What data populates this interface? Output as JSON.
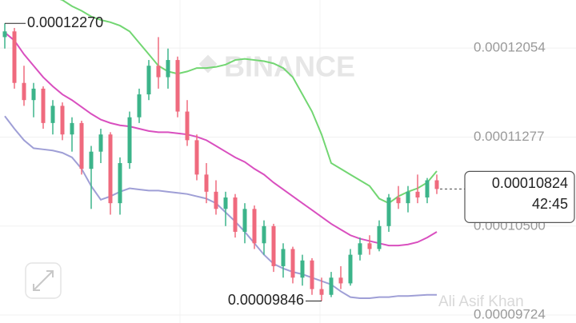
{
  "chart_data": {
    "type": "candlestick",
    "ylim": [
      9.654e-05,
      0.00012474
    ],
    "yticks": [
      0.00012054,
      0.00011277,
      {
        "value": 0.000105,
        "label": "0.00010500"
      },
      9.724e-05
    ],
    "grid": true,
    "up_color": "#3cb48a",
    "down_color": "#ef6a7e",
    "open": [
      0.0001215,
      0.000122,
      0.0001175,
      0.000116,
      0.000117,
      0.000114,
      0.0001155,
      0.000113,
      0.000114,
      0.00011,
      0.0001115,
      0.000113,
      0.000107,
      0.0001105,
      0.0001145,
      0.0001165,
      0.000119,
      0.000118,
      0.0001195,
      0.000115,
      0.0001125,
      0.0001095,
      0.000108,
      0.0001065,
      0.0001075,
      0.0001045,
      0.0001065,
      0.0001035,
      0.000105,
      0.0001015,
      0.000103,
      0.0001005,
      0.000102,
      9.95e-05,
      9.9e-05,
      0.0001005,
      0.0001,
      0.0001025,
      0.0001035,
      0.000103,
      0.000105,
      0.0001075,
      0.000107,
      0.000108,
      0.0001075,
      0.000109
    ],
    "high": [
      0.0001227,
      0.0001223,
      0.000119,
      0.0001175,
      0.0001172,
      0.000116,
      0.0001158,
      0.0001145,
      0.0001142,
      0.000112,
      0.0001135,
      0.0001132,
      0.000111,
      0.000115,
      0.000117,
      0.0001195,
      0.0001215,
      0.0001205,
      0.0001198,
      0.000116,
      0.000113,
      0.0001105,
      0.000109,
      0.000108,
      0.0001078,
      0.000107,
      0.0001068,
      0.0001055,
      0.0001052,
      0.0001035,
      0.0001032,
      0.0001025,
      0.0001022,
      0.0001005,
      0.000101,
      0.0001015,
      0.000103,
      0.000104,
      0.0001042,
      0.0001055,
      0.0001078,
      0.0001085,
      0.0001085,
      0.0001095,
      0.0001092,
      0.0001095
    ],
    "low": [
      0.0001205,
      0.000117,
      0.0001155,
      0.0001145,
      0.0001135,
      0.000113,
      0.0001125,
      0.0001115,
      0.0001095,
      0.0001065,
      0.0001105,
      0.000106,
      0.000106,
      0.00011,
      0.000114,
      0.000116,
      0.000117,
      0.000117,
      0.0001145,
      0.000112,
      0.000109,
      0.000107,
      0.000106,
      0.000105,
      0.000104,
      0.0001035,
      0.000103,
      0.0001025,
      0.000101,
      0.0001005,
      0.0001,
      9.98e-05,
      9.9e-05,
      9.846e-05,
      9.88e-05,
      9.95e-05,
      9.98e-05,
      0.000102,
      0.0001025,
      0.0001028,
      0.0001045,
      0.0001065,
      0.0001062,
      0.000107,
      0.000107,
      0.0001078
    ],
    "close": [
      0.000122,
      0.0001175,
      0.000116,
      0.000117,
      0.000114,
      0.0001155,
      0.000113,
      0.000114,
      0.00011,
      0.0001115,
      0.000113,
      0.000107,
      0.0001105,
      0.0001145,
      0.0001165,
      0.000119,
      0.000118,
      0.0001195,
      0.000115,
      0.0001125,
      0.0001095,
      0.000108,
      0.0001065,
      0.0001075,
      0.0001045,
      0.0001065,
      0.0001035,
      0.000105,
      0.0001015,
      0.000103,
      0.0001005,
      0.000102,
      9.95e-05,
      9.9e-05,
      0.0001005,
      0.0001,
      0.0001025,
      0.0001035,
      0.000103,
      0.000105,
      0.0001075,
      0.000107,
      0.000108,
      0.0001075,
      0.000109,
      0.00010824
    ],
    "bands": [
      {
        "color": "#72d672",
        "values": [
          0.000129,
          0.000128,
          0.000127,
          0.000126,
          0.0001255,
          0.000125,
          0.00012474,
          0.0001242,
          0.0001238,
          0.0001233,
          0.000123,
          0.0001228,
          0.0001225,
          0.000122,
          0.000121,
          0.00012,
          0.000119,
          0.0001185,
          0.0001183,
          0.0001185,
          0.0001188,
          0.0001188,
          0.0001189,
          0.0001191,
          0.0001195,
          0.0001196,
          0.0001195,
          0.0001194,
          0.0001192,
          0.0001188,
          0.000118,
          0.0001165,
          0.000115,
          0.000113,
          0.0001105,
          0.00011,
          0.0001095,
          0.000109,
          0.0001085,
          0.0001074,
          0.000107,
          0.0001076,
          0.000108,
          0.0001083,
          0.0001088,
          0.0001098
        ]
      },
      {
        "color": "#d94fbf",
        "values": [
          0.0001219,
          0.0001212,
          0.00012,
          0.000119,
          0.000118,
          0.0001172,
          0.0001165,
          0.000116,
          0.0001154,
          0.0001148,
          0.0001143,
          0.000114,
          0.0001138,
          0.0001137,
          0.0001135,
          0.0001133,
          0.0001132,
          0.0001132,
          0.0001131,
          0.000113,
          0.0001128,
          0.0001125,
          0.000112,
          0.0001115,
          0.000111,
          0.0001106,
          0.00011,
          0.0001095,
          0.0001088,
          0.0001082,
          0.0001076,
          0.000107,
          0.0001064,
          0.0001058,
          0.0001052,
          0.0001047,
          0.0001042,
          0.0001039,
          0.0001037,
          0.0001035,
          0.0001033,
          0.0001033,
          0.0001034,
          0.0001036,
          0.000104,
          0.0001045
        ]
      },
      {
        "color": "#9f9fd6",
        "values": [
          0.0001146,
          0.0001135,
          0.0001125,
          0.0001118,
          0.0001117,
          0.0001116,
          0.0001114,
          0.000111,
          0.00011,
          0.0001085,
          0.0001073,
          0.0001076,
          0.000108,
          0.0001083,
          0.0001082,
          0.0001081,
          0.0001081,
          0.000108,
          0.0001079,
          0.0001078,
          0.0001076,
          0.0001074,
          0.000107,
          0.0001062,
          0.0001054,
          0.0001045,
          0.0001035,
          0.0001025,
          0.0001017,
          0.0001013,
          0.000101,
          0.0001008,
          0.0001005,
          0.0001002,
          9.99e-05,
          9.93e-05,
          9.88e-05,
          9.87e-05,
          9.87e-05,
          9.88e-05,
          9.88e-05,
          9.89e-05,
          9.89e-05,
          9.895e-05,
          9.9e-05,
          9.9e-05
        ]
      }
    ],
    "high_annotation": {
      "value": 0.0001227,
      "label": "0.00012270"
    },
    "low_annotation": 9.846e-05,
    "last_price": 0.00010824,
    "countdown": "42:45",
    "watermark": "BINANCE",
    "credit": "Ali Asif Khan"
  }
}
